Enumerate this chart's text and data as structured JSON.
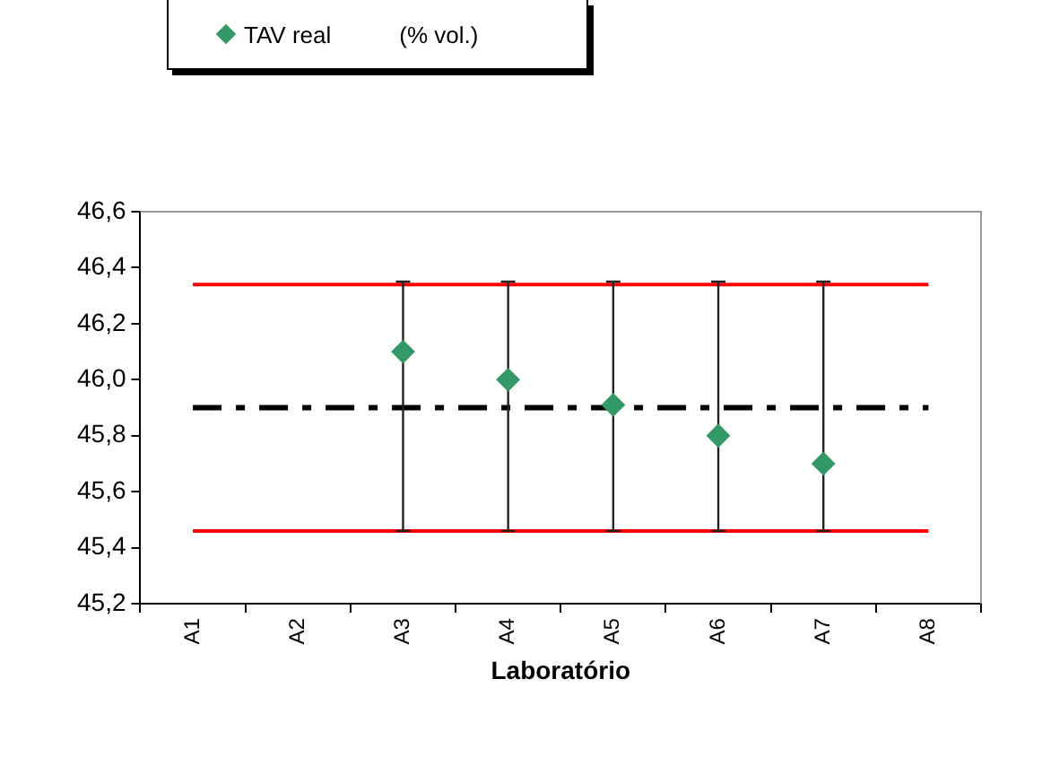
{
  "chart_data": {
    "type": "scatter",
    "categories": [
      "A1",
      "A2",
      "A3",
      "A4",
      "A5",
      "A6",
      "A7",
      "A8"
    ],
    "series": [
      {
        "name": "TAV real",
        "color": "#339966",
        "values": [
          null,
          null,
          46.1,
          46.0,
          45.91,
          45.8,
          45.7,
          null
        ],
        "errors": [
          null,
          null,
          [
            45.46,
            46.35
          ],
          [
            45.46,
            46.35
          ],
          [
            45.46,
            46.35
          ],
          [
            45.46,
            46.35
          ],
          [
            45.46,
            46.35
          ],
          null
        ]
      }
    ],
    "xlabel": "Laboratório",
    "ylim": [
      45.2,
      46.6
    ],
    "yticks": [
      {
        "value": 45.2,
        "label": "45,2"
      },
      {
        "value": 45.4,
        "label": "45,4"
      },
      {
        "value": 45.6,
        "label": "45,6"
      },
      {
        "value": 45.8,
        "label": "45,8"
      },
      {
        "value": 46.0,
        "label": "46,0"
      },
      {
        "value": 46.2,
        "label": "46,2"
      },
      {
        "value": 46.4,
        "label": "46,4"
      },
      {
        "value": 46.6,
        "label": "46,6"
      }
    ],
    "ref_lines": [
      {
        "axis": "y",
        "value": 46.34,
        "color": "#ff0000",
        "line_style": "solid"
      },
      {
        "axis": "y",
        "value": 45.46,
        "color": "#ff0000",
        "line_style": "solid"
      },
      {
        "axis": "y",
        "value": 45.9,
        "color": "#000000",
        "line_style": "dashed"
      }
    ],
    "annotations": [
      "(% vol.)"
    ],
    "marker": "diamond",
    "legend": "top",
    "grid": false
  }
}
